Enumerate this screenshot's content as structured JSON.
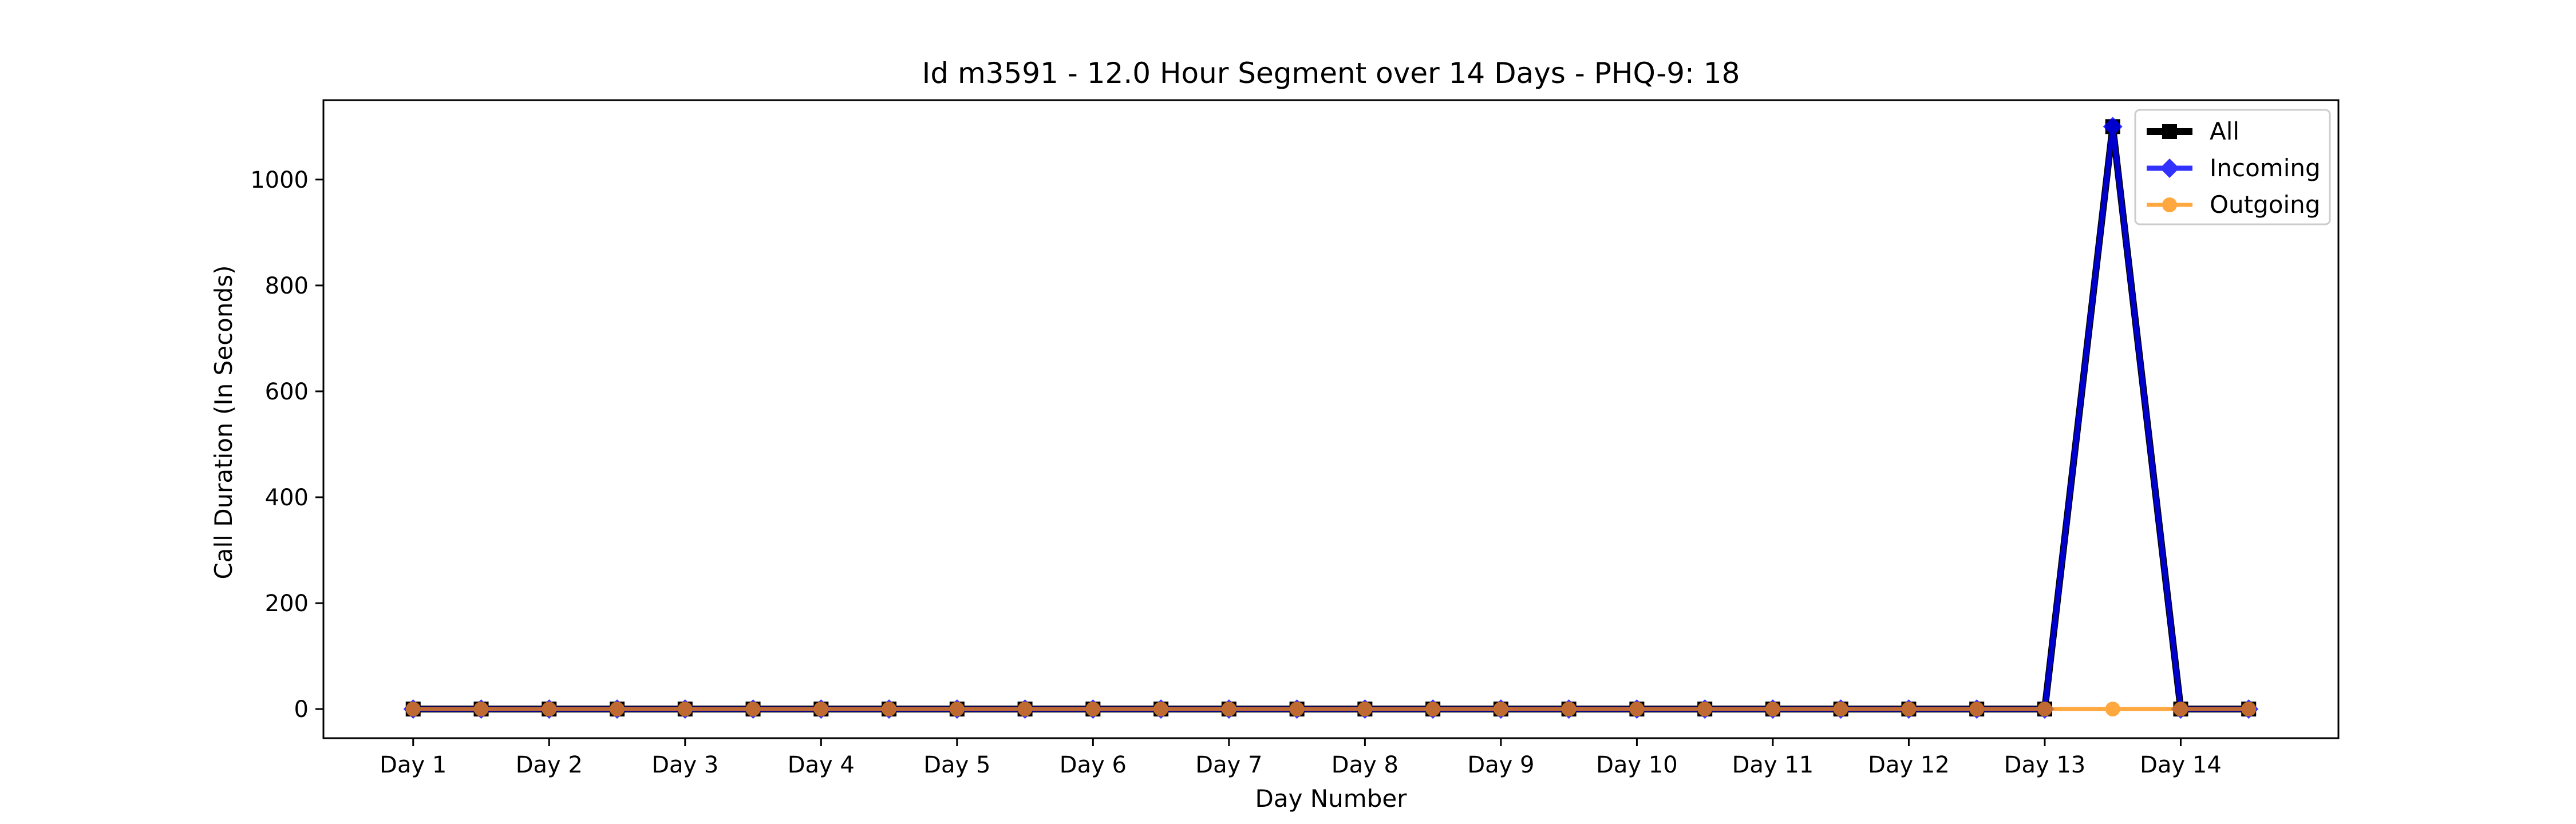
{
  "chart_data": {
    "type": "line",
    "title": "Id m3591 - 12.0 Hour Segment over 14 Days - PHQ-9: 18",
    "xlabel": "Day Number",
    "ylabel": "Call Duration (In Seconds)",
    "ylim": [
      -55,
      1150
    ],
    "yticks": [
      0,
      200,
      400,
      600,
      800,
      1000
    ],
    "xticks": [
      "Day 1",
      "Day 2",
      "Day 3",
      "Day 4",
      "Day 5",
      "Day 6",
      "Day 7",
      "Day 8",
      "Day 9",
      "Day 10",
      "Day 11",
      "Day 12",
      "Day 13",
      "Day 14"
    ],
    "x": [
      1,
      1.5,
      2,
      2.5,
      3,
      3.5,
      4,
      4.5,
      5,
      5.5,
      6,
      6.5,
      7,
      7.5,
      8,
      8.5,
      9,
      9.5,
      10,
      10.5,
      11,
      11.5,
      12,
      12.5,
      13,
      13.5,
      14,
      14.5
    ],
    "series": [
      {
        "name": "All",
        "color": "#000000",
        "marker": "square",
        "values": [
          0,
          0,
          0,
          0,
          0,
          0,
          0,
          0,
          0,
          0,
          0,
          0,
          0,
          0,
          0,
          0,
          0,
          0,
          0,
          0,
          0,
          0,
          0,
          0,
          0,
          1100,
          0,
          0
        ]
      },
      {
        "name": "Incoming",
        "color": "#0000ff",
        "marker": "diamond",
        "values": [
          0,
          0,
          0,
          0,
          0,
          0,
          0,
          0,
          0,
          0,
          0,
          0,
          0,
          0,
          0,
          0,
          0,
          0,
          0,
          0,
          0,
          0,
          0,
          0,
          0,
          1100,
          0,
          0
        ]
      },
      {
        "name": "Outgoing",
        "color": "#ff8c00",
        "marker": "circle",
        "values": [
          0,
          0,
          0,
          0,
          0,
          0,
          0,
          0,
          0,
          0,
          0,
          0,
          0,
          0,
          0,
          0,
          0,
          0,
          0,
          0,
          0,
          0,
          0,
          0,
          0,
          0,
          0,
          0
        ]
      }
    ],
    "grid": false,
    "legend": "top-right"
  }
}
